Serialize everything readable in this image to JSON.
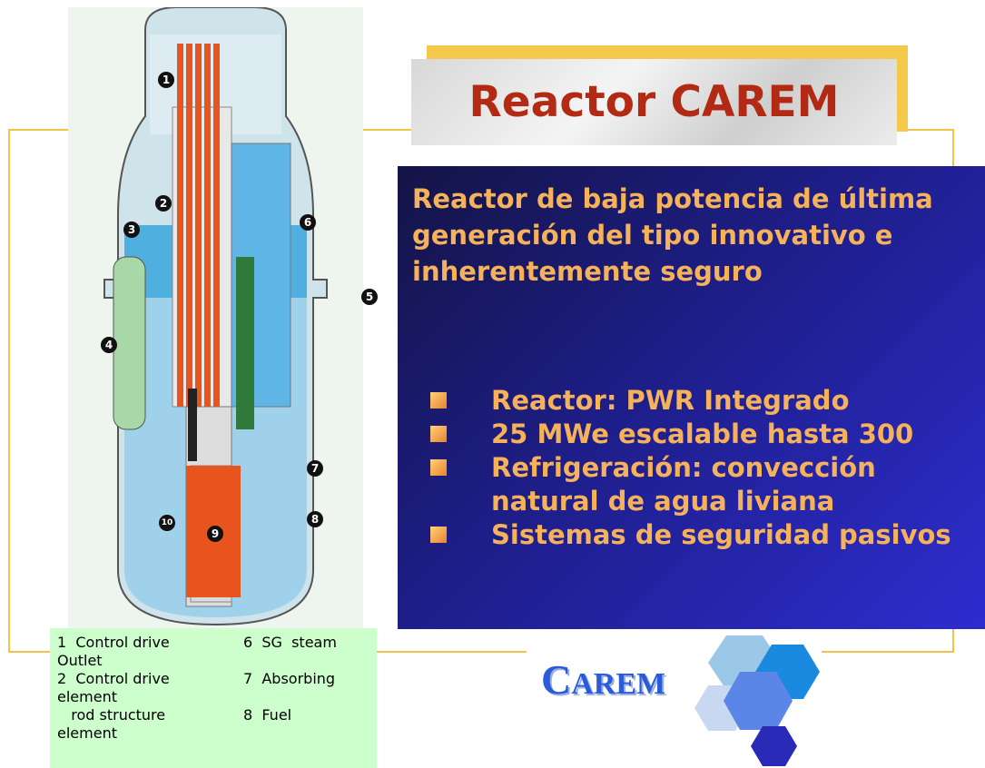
{
  "title": "Reactor CAREM",
  "description": "Reactor de baja potencia de última generación del tipo innovativo e inherentemente seguro",
  "bullets": [
    "Reactor: PWR Integrado",
    "25 MWe escalable hasta 300",
    "Refrigeración: convección natural de agua liviana",
    "Sistemas de seguridad pasivos"
  ],
  "diagram": {
    "callouts": [
      "1",
      "2",
      "3",
      "4",
      "5",
      "6",
      "7",
      "8",
      "9",
      "10"
    ]
  },
  "legend": [
    {
      "left": "1  Control drive",
      "right": "6  SG  steam"
    },
    {
      "left": "Outlet"
    },
    {
      "left": "2  Control drive",
      "right": "7  Absorbing"
    },
    {
      "left": "element"
    },
    {
      "left": "   rod structure",
      "right": "8  Fuel"
    },
    {
      "left": "element"
    }
  ],
  "logo": "CAREM"
}
